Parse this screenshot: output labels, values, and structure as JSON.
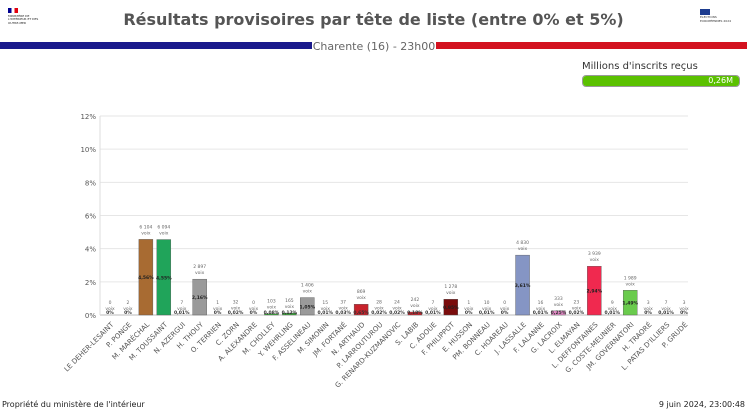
{
  "header": {
    "logo_left": "MINISTÈRE DE L'INTÉRIEUR ET DES OUTRE-MER",
    "logo_right": "ÉLECTIONS EUROPÉENNES 2024",
    "title": "Résultats provisoires par tête de liste (entre 0% et 5%)",
    "subtitle": "Charente (16) - 23h00",
    "band_colors": [
      "#1a1a8c",
      "#d3121f"
    ]
  },
  "inscrits": {
    "label": "Millions d'inscrits reçus",
    "value": "0,26M",
    "fill_fraction": 1,
    "color": "#5bc100"
  },
  "chart_data": {
    "type": "bar",
    "ylim": [
      0,
      12
    ],
    "yticks": [
      "0%",
      "2%",
      "4%",
      "6%",
      "8%",
      "10%",
      "12%"
    ],
    "grid": true,
    "vote_unit": "voix",
    "categories": [
      "LE DEHER-LESAINT",
      "P. PONGE",
      "M. MARÉCHAL",
      "M. TOUSSAINT",
      "N. AZERGUI",
      "H. THOUY",
      "O. TERRIEN",
      "C. ZORN",
      "A. ALEXANDRE",
      "M. CHOLLEY",
      "Y. WEHRLING",
      "F. ASSELINEAU",
      "M. SIMONIN",
      "JM. FORTANÉ",
      "N. ARTHAUD",
      "P. LARROUTUROU",
      "G. RENARD-KUZMANOVIC",
      "S. LABIB",
      "C. ADOUE",
      "F. PHILIPPOT",
      "E. HUSSON",
      "PM. BONNEAU",
      "C. HOAREAU",
      "J. LASSALLE",
      "F. LALANNE",
      "G. LACROIX",
      "L. ELMAYAN",
      "L. DEFFONTAINES",
      "G. COSTE-MEUNIER",
      "JM. GOVERNATORI",
      "H. TRAORÉ",
      "L. PATAS D'ILLIERS",
      "P. GRUDÉ"
    ],
    "votes": [
      "0",
      "2",
      "6 104",
      "6 094",
      "7",
      "2 897",
      "1",
      "32",
      "0",
      "103",
      "165",
      "1 406",
      "15",
      "37",
      "869",
      "28",
      "24",
      "242",
      "7",
      "1 278",
      "1",
      "10",
      "0",
      "4 830",
      "16",
      "333",
      "23",
      "3 939",
      "9",
      "1 989",
      "3",
      "7",
      "3"
    ],
    "values": [
      0,
      0,
      4.56,
      4.55,
      0.01,
      2.16,
      0,
      0.02,
      0,
      0.08,
      0.12,
      1.05,
      0.01,
      0.03,
      0.65,
      0.02,
      0.02,
      0.18,
      0.01,
      0.95,
      0,
      0.01,
      0,
      3.61,
      0.01,
      0.25,
      0.02,
      2.94,
      0.01,
      1.49,
      0,
      0.01,
      0
    ],
    "labels": [
      "0%",
      "0%",
      "4,56%",
      "4,55%",
      "0,01%",
      "2,16%",
      "0%",
      "0,02%",
      "0%",
      "0,08%",
      "0,12%",
      "1,05%",
      "0,01%",
      "0,03%",
      "0,65%",
      "0,02%",
      "0,02%",
      "0,18%",
      "0,01%",
      "0,95%",
      "0%",
      "0,01%",
      "0%",
      "3,61%",
      "0,01%",
      "0,25%",
      "0,02%",
      "2,94%",
      "0,01%",
      "1,49%",
      "0%",
      "0,01%",
      "0%"
    ],
    "colors": [
      "#999",
      "#999",
      "#a86b32",
      "#20a45a",
      "#999",
      "#9a9a9a",
      "#999",
      "#999",
      "#999",
      "#3aa53a",
      "#3aa53a",
      "#9a9a9a",
      "#999",
      "#999",
      "#c8232c",
      "#999",
      "#999",
      "#c8232c",
      "#999",
      "#7a0c0c",
      "#999",
      "#999",
      "#999",
      "#8595c4",
      "#999",
      "#e58bc8",
      "#999",
      "#f0294f",
      "#999",
      "#6acb4d",
      "#999",
      "#999",
      "#999"
    ]
  },
  "footer": {
    "owner": "Propriété du ministère de l'intérieur",
    "timestamp": "9 juin 2024, 23:00:48"
  }
}
